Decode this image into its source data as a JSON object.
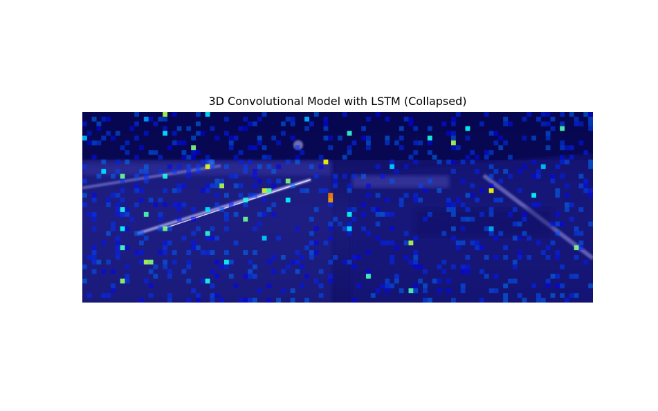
{
  "chart_data": {
    "type": "heatmap",
    "title": "3D Convolutional Model with LSTM (Collapsed)",
    "xlabel": "",
    "ylabel": "",
    "axes_visible": false,
    "grid": false,
    "legend": "none",
    "colormap": "jet",
    "colormap_overlay_on_image": true,
    "background_image": "dark night road scene with reflective lane streaks",
    "grid_cells": {
      "columns": 108,
      "rows": 40
    },
    "cell_values_range": [
      0,
      1
    ],
    "hot_cells": [
      {
        "col": 17,
        "row": 0,
        "v": 0.55
      },
      {
        "col": 26,
        "row": 0,
        "v": 0.35
      },
      {
        "col": 13,
        "row": 1,
        "v": 0.28
      },
      {
        "col": 47,
        "row": 1,
        "v": 0.3
      },
      {
        "col": 56,
        "row": 4,
        "v": 0.42
      },
      {
        "col": 81,
        "row": 3,
        "v": 0.38
      },
      {
        "col": 101,
        "row": 3,
        "v": 0.45
      },
      {
        "col": 17,
        "row": 4,
        "v": 0.36
      },
      {
        "col": 23,
        "row": 7,
        "v": 0.5
      },
      {
        "col": 78,
        "row": 6,
        "v": 0.55
      },
      {
        "col": 51,
        "row": 10,
        "v": 0.62
      },
      {
        "col": 26,
        "row": 11,
        "v": 0.6
      },
      {
        "col": 65,
        "row": 11,
        "v": 0.33
      },
      {
        "col": 97,
        "row": 11,
        "v": 0.32
      },
      {
        "col": 4,
        "row": 12,
        "v": 0.35
      },
      {
        "col": 8,
        "row": 13,
        "v": 0.48
      },
      {
        "col": 17,
        "row": 13,
        "v": 0.4
      },
      {
        "col": 43,
        "row": 14,
        "v": 0.5
      },
      {
        "col": 29,
        "row": 15,
        "v": 0.55
      },
      {
        "col": 39,
        "row": 16,
        "v": 0.45
      },
      {
        "col": 38,
        "row": 16,
        "v": 0.58
      },
      {
        "col": 86,
        "row": 16,
        "v": 0.62
      },
      {
        "col": 52,
        "row": 17,
        "v": 0.75
      },
      {
        "col": 52,
        "row": 18,
        "v": 0.72
      },
      {
        "col": 34,
        "row": 18,
        "v": 0.4
      },
      {
        "col": 43,
        "row": 18,
        "v": 0.38
      },
      {
        "col": 8,
        "row": 20,
        "v": 0.4
      },
      {
        "col": 26,
        "row": 20,
        "v": 0.35
      },
      {
        "col": 13,
        "row": 21,
        "v": 0.45
      },
      {
        "col": 34,
        "row": 22,
        "v": 0.48
      },
      {
        "col": 56,
        "row": 21,
        "v": 0.38
      },
      {
        "col": 17,
        "row": 24,
        "v": 0.5
      },
      {
        "col": 26,
        "row": 25,
        "v": 0.42
      },
      {
        "col": 8,
        "row": 24,
        "v": 0.38
      },
      {
        "col": 56,
        "row": 24,
        "v": 0.35
      },
      {
        "col": 69,
        "row": 27,
        "v": 0.55
      },
      {
        "col": 8,
        "row": 28,
        "v": 0.45
      },
      {
        "col": 13,
        "row": 31,
        "v": 0.55
      },
      {
        "col": 14,
        "row": 31,
        "v": 0.5
      },
      {
        "col": 30,
        "row": 31,
        "v": 0.38
      },
      {
        "col": 60,
        "row": 34,
        "v": 0.45
      },
      {
        "col": 8,
        "row": 35,
        "v": 0.52
      },
      {
        "col": 26,
        "row": 35,
        "v": 0.4
      },
      {
        "col": 69,
        "row": 37,
        "v": 0.45
      },
      {
        "col": 104,
        "row": 28,
        "v": 0.5
      },
      {
        "col": 95,
        "row": 17,
        "v": 0.38
      },
      {
        "col": 73,
        "row": 5,
        "v": 0.4
      },
      {
        "col": 0,
        "row": 5,
        "v": 0.3
      },
      {
        "col": 86,
        "row": 24,
        "v": 0.3
      },
      {
        "col": 38,
        "row": 26,
        "v": 0.33
      }
    ]
  }
}
